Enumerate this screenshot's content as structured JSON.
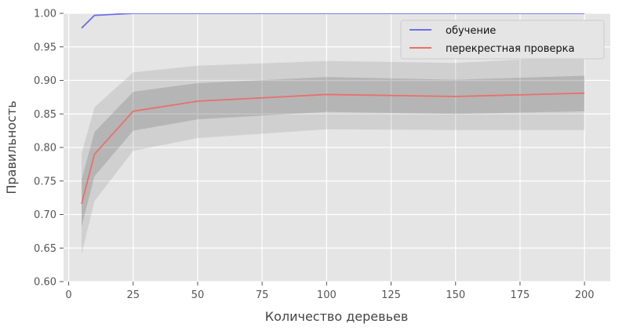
{
  "chart_data": {
    "type": "line",
    "title": "",
    "xlabel": "Количество деревьев",
    "ylabel": "Правильность",
    "xlim": [
      -2,
      210
    ],
    "ylim": [
      0.6,
      1.0
    ],
    "xticks": [
      0,
      25,
      50,
      75,
      100,
      125,
      150,
      175,
      200
    ],
    "yticks": [
      0.6,
      0.65,
      0.7,
      0.75,
      0.8,
      0.85,
      0.9,
      0.95,
      1.0
    ],
    "grid": true,
    "legend_position": "top-right",
    "x": [
      5,
      10,
      25,
      50,
      100,
      150,
      200
    ],
    "series": [
      {
        "name": "обучение",
        "color": "#6f6fe8",
        "values": [
          0.978,
          0.997,
          1.0,
          1.0,
          1.0,
          1.0,
          1.0
        ]
      },
      {
        "name": "перекрестная проверка",
        "color": "#e8706c",
        "values": [
          0.716,
          0.79,
          0.854,
          0.869,
          0.879,
          0.876,
          0.881
        ],
        "band_1std": {
          "lower": [
            0.682,
            0.757,
            0.825,
            0.842,
            0.853,
            0.85,
            0.854
          ],
          "upper": [
            0.752,
            0.823,
            0.883,
            0.896,
            0.905,
            0.901,
            0.907
          ]
        },
        "band_2std": {
          "lower": [
            0.641,
            0.72,
            0.795,
            0.814,
            0.827,
            0.826,
            0.826
          ],
          "upper": [
            0.791,
            0.86,
            0.912,
            0.922,
            0.929,
            0.926,
            0.936
          ]
        }
      }
    ]
  }
}
